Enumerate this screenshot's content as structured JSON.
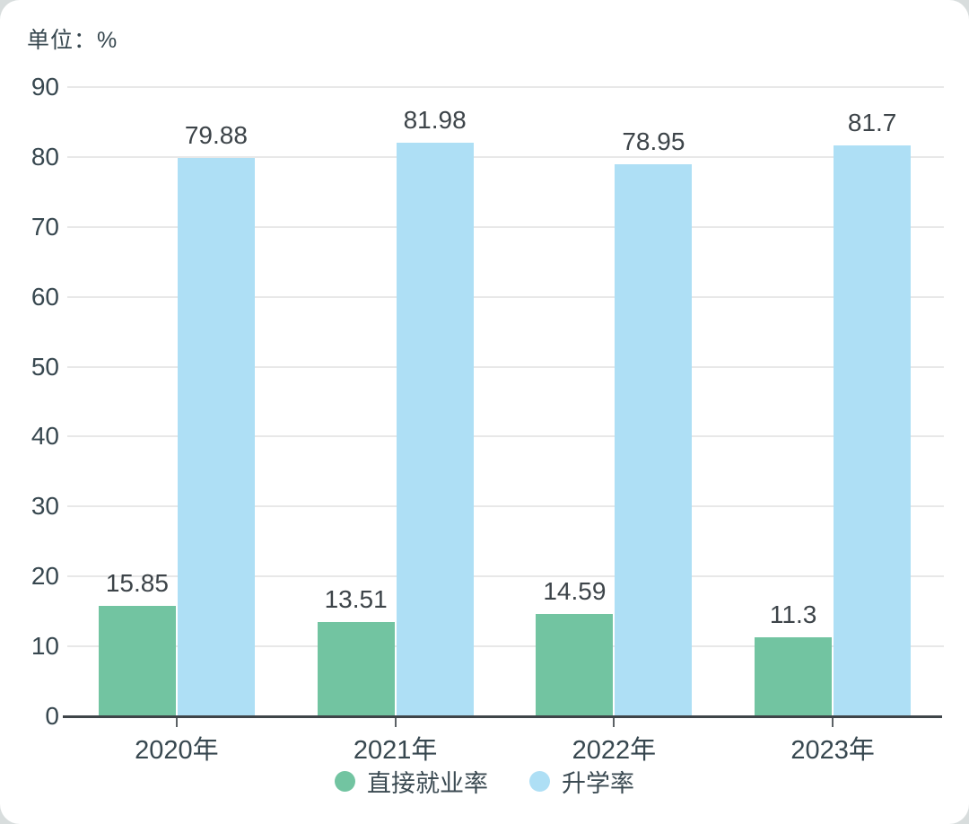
{
  "chart_data": {
    "type": "bar",
    "title": "",
    "unit_label": "单位：%",
    "categories": [
      "2020年",
      "2021年",
      "2022年",
      "2023年"
    ],
    "series": [
      {
        "name": "直接就业率",
        "color": "#72C4A1",
        "values": [
          15.85,
          13.51,
          14.59,
          11.3
        ]
      },
      {
        "name": "升学率",
        "color": "#AEDFF5",
        "values": [
          79.88,
          81.98,
          78.95,
          81.7
        ]
      }
    ],
    "ylim": [
      0,
      90
    ],
    "ytick_step": 10,
    "yticks": [
      0,
      10,
      20,
      30,
      40,
      50,
      60,
      70,
      80,
      90
    ],
    "grid": true,
    "value_labels_shown": true,
    "legend_position": "bottom",
    "colors": {
      "grid": "#E8E8E8",
      "axis": "#3F4549",
      "tick_mark": "#5C6165",
      "axis_text": "#37474F",
      "value_text": "#3D4449",
      "background": "#FFFFFF"
    }
  }
}
